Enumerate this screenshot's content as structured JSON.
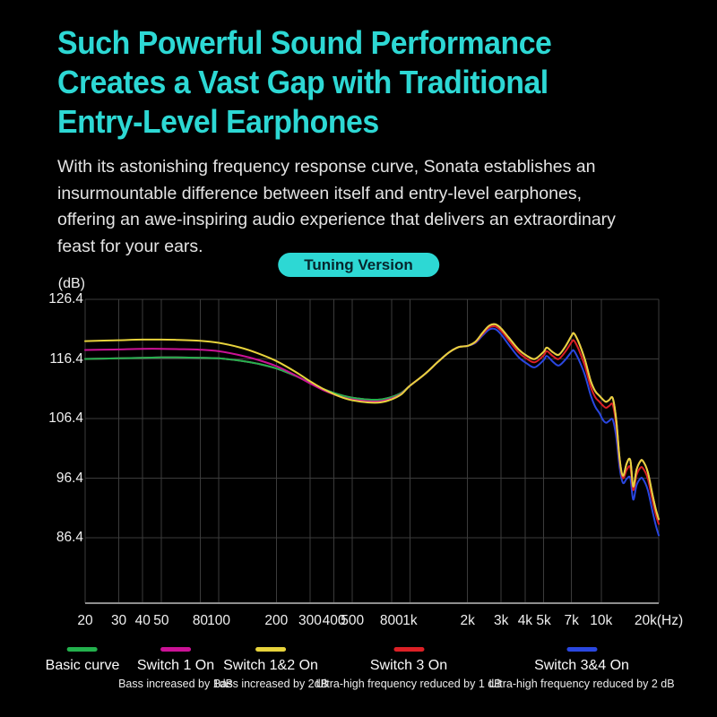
{
  "page": {
    "background": "#000000",
    "accent_color": "#2dd8d4"
  },
  "headline": {
    "lines": [
      "Such Powerful Sound Performance",
      "Creates a Vast Gap with Traditional",
      "Entry-Level Earphones"
    ]
  },
  "intro": {
    "lines": [
      "With its astonishing frequency response curve, Sonata establishes an",
      "insurmountable difference between itself and entry-level earphones,",
      "offering an awe-inspiring audio experience that delivers an extraordinary",
      "feast for your ears."
    ]
  },
  "badge": {
    "label": "Tuning Version",
    "bg": "#2dd8d4",
    "text": "#06252c"
  },
  "grid": {
    "line_color": "#3c3c3c",
    "axis_color": "#8f8f8f"
  },
  "chart_data": {
    "type": "line",
    "x_scale": "log",
    "y_unit": "(dB)",
    "xlim": [
      20,
      20000
    ],
    "ylim": [
      75.4,
      126.4
    ],
    "grid": true,
    "legend_position": "bottom",
    "y_ticks": [
      126.4,
      116.4,
      106.4,
      96.4,
      86.4
    ],
    "x_ticks": [
      {
        "f": 20,
        "label": "20"
      },
      {
        "f": 30,
        "label": "30"
      },
      {
        "f": 40,
        "label": "40"
      },
      {
        "f": 50,
        "label": "50"
      },
      {
        "f": 80,
        "label": "80"
      },
      {
        "f": 100,
        "label": "100"
      },
      {
        "f": 200,
        "label": "200"
      },
      {
        "f": 300,
        "label": "300"
      },
      {
        "f": 400,
        "label": "400"
      },
      {
        "f": 500,
        "label": "500"
      },
      {
        "f": 800,
        "label": "800"
      },
      {
        "f": 1000,
        "label": "1k"
      },
      {
        "f": 2000,
        "label": "2k"
      },
      {
        "f": 3000,
        "label": "3k"
      },
      {
        "f": 4000,
        "label": "4k"
      },
      {
        "f": 5000,
        "label": "5k"
      },
      {
        "f": 7000,
        "label": "7k"
      },
      {
        "f": 10000,
        "label": "10k"
      },
      {
        "f": 20000,
        "label": "20k(Hz)"
      }
    ],
    "freqs": [
      20,
      30,
      40,
      50,
      60,
      80,
      100,
      130,
      160,
      200,
      250,
      300,
      350,
      400,
      450,
      500,
      600,
      700,
      800,
      900,
      1000,
      1200,
      1400,
      1600,
      1800,
      2000,
      2200,
      2400,
      2600,
      2800,
      3000,
      3300,
      3700,
      4100,
      4500,
      5000,
      5200,
      5600,
      6000,
      6500,
      7000,
      7200,
      7600,
      8200,
      8800,
      9300,
      9800,
      10200,
      10600,
      11000,
      11500,
      12000,
      12500,
      13000,
      13600,
      14200,
      14700,
      15300,
      16000,
      16500,
      17500,
      18500,
      19300,
      20000
    ],
    "series": [
      {
        "name": "Basic curve",
        "sub": "",
        "color": "#23b14d",
        "z": 3,
        "values": [
          116.4,
          116.5,
          116.6,
          116.65,
          116.65,
          116.6,
          116.5,
          116.1,
          115.6,
          114.8,
          113.6,
          112.4,
          111.4,
          110.7,
          110.2,
          109.9,
          109.6,
          109.6,
          110.0,
          110.7,
          111.9,
          113.9,
          115.9,
          117.5,
          118.4,
          118.6,
          119.3,
          120.8,
          122.0,
          122.2,
          121.5,
          119.9,
          118.0,
          116.9,
          116.4,
          117.6,
          118.3,
          117.5,
          117.1,
          118.5,
          120.3,
          120.7,
          119.3,
          116.4,
          112.8,
          111.0,
          110.2,
          109.6,
          109.2,
          109.5,
          109.8,
          106.0,
          99.5,
          96.8,
          98.9,
          99.4,
          95.0,
          97.8,
          99.2,
          99.3,
          97.5,
          93.8,
          91.2,
          89.5
        ]
      },
      {
        "name": "Switch 1 On",
        "sub": "Bass increased by 1dB",
        "color": "#cb1296",
        "z": 4,
        "values": [
          117.9,
          118.0,
          118.1,
          118.1,
          118.05,
          117.95,
          117.7,
          117.0,
          116.25,
          115.2,
          113.7,
          112.3,
          111.2,
          110.45,
          109.9,
          109.6,
          109.3,
          109.3,
          109.75,
          110.55,
          111.9,
          113.9,
          115.9,
          117.5,
          118.4,
          118.6,
          119.3,
          120.8,
          122.0,
          122.2,
          121.5,
          119.9,
          118.0,
          116.9,
          116.4,
          117.6,
          118.3,
          117.5,
          117.1,
          118.5,
          120.3,
          120.7,
          119.3,
          116.4,
          112.8,
          111.0,
          110.2,
          109.6,
          109.2,
          109.5,
          109.8,
          106.0,
          99.5,
          96.8,
          98.9,
          99.4,
          95.0,
          97.8,
          99.2,
          99.3,
          97.5,
          93.8,
          91.2,
          89.5
        ]
      },
      {
        "name": "Switch 1&2 On",
        "sub": "Bass increased by 2dB",
        "color": "#e7d33c",
        "z": 5,
        "values": [
          119.4,
          119.55,
          119.65,
          119.65,
          119.6,
          119.45,
          119.1,
          118.3,
          117.35,
          116.05,
          114.3,
          112.65,
          111.4,
          110.5,
          109.85,
          109.45,
          109.1,
          109.1,
          109.6,
          110.45,
          111.9,
          113.9,
          115.9,
          117.5,
          118.4,
          118.6,
          119.3,
          120.8,
          122.0,
          122.2,
          121.5,
          119.9,
          118.0,
          116.9,
          116.4,
          117.6,
          118.3,
          117.5,
          117.1,
          118.5,
          120.3,
          120.7,
          119.3,
          116.4,
          112.8,
          111.0,
          110.2,
          109.6,
          109.2,
          109.5,
          109.8,
          106.0,
          99.5,
          96.8,
          98.9,
          99.4,
          95.0,
          97.8,
          99.2,
          99.3,
          97.5,
          93.8,
          91.2,
          89.5
        ]
      },
      {
        "name": "Switch 3 On",
        "sub": "Ultra-high frequency reduced by 1 dB",
        "color": "#dc2026",
        "z": 2,
        "values": [
          116.4,
          116.5,
          116.6,
          116.65,
          116.65,
          116.6,
          116.5,
          116.1,
          115.6,
          114.8,
          113.6,
          112.4,
          111.4,
          110.7,
          110.2,
          109.9,
          109.6,
          109.6,
          110.0,
          110.7,
          111.9,
          113.9,
          115.9,
          117.5,
          118.4,
          118.6,
          119.2,
          120.6,
          121.7,
          121.85,
          121.1,
          119.45,
          117.5,
          116.4,
          115.85,
          117.0,
          117.7,
          116.85,
          116.4,
          117.65,
          119.2,
          119.5,
          118.1,
          115.3,
          111.8,
          110.0,
          109.2,
          108.6,
          108.2,
          108.5,
          108.7,
          105.1,
          99.0,
          96.4,
          97.8,
          98.2,
          94.4,
          96.9,
          98.1,
          98.1,
          96.4,
          92.8,
          90.3,
          88.7
        ]
      },
      {
        "name": "Switch 3&4 On",
        "sub": "Ultra-high frequency reduced by 2 dB",
        "color": "#2a47e0",
        "z": 1,
        "values": [
          116.4,
          116.5,
          116.6,
          116.65,
          116.65,
          116.6,
          116.5,
          116.1,
          115.6,
          114.8,
          113.6,
          112.4,
          111.4,
          110.7,
          110.2,
          109.9,
          109.6,
          109.6,
          110.0,
          110.7,
          111.9,
          113.9,
          115.9,
          117.5,
          118.4,
          118.6,
          119.1,
          120.35,
          121.35,
          121.4,
          120.5,
          118.7,
          116.7,
          115.6,
          115.0,
          116.2,
          116.9,
          115.9,
          115.3,
          116.3,
          117.6,
          117.8,
          116.4,
          113.8,
          110.4,
          108.4,
          107.3,
          106.2,
          105.7,
          106.0,
          106.2,
          103.2,
          98.0,
          95.6,
          96.3,
          96.4,
          92.8,
          95.2,
          96.3,
          96.3,
          94.5,
          91.0,
          88.5,
          86.8
        ]
      }
    ]
  }
}
